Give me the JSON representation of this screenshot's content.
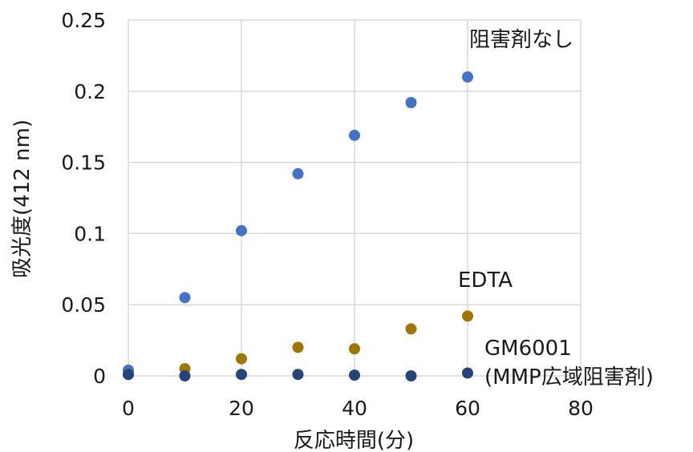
{
  "chart_data": {
    "type": "scatter",
    "title": "",
    "xlabel": "反応時間(分)",
    "ylabel": "吸光度(412 nm)",
    "xlim": [
      0,
      80
    ],
    "ylim": [
      0,
      0.25
    ],
    "xticks": [
      "0",
      "20",
      "40",
      "60",
      "80"
    ],
    "yticks": [
      "0",
      "0.05",
      "0.1",
      "0.15",
      "0.2",
      "0.25"
    ],
    "grid": true,
    "legend": "none",
    "series": [
      {
        "name": "阻害剤なし",
        "color": "#4472c4",
        "x": [
          0,
          10,
          20,
          30,
          40,
          50,
          60
        ],
        "y": [
          0.004,
          0.055,
          0.102,
          0.142,
          0.169,
          0.192,
          0.21
        ]
      },
      {
        "name": "EDTA",
        "color": "#9e7600",
        "x": [
          0,
          10,
          20,
          30,
          40,
          50,
          60
        ],
        "y": [
          0.001,
          0.005,
          0.012,
          0.02,
          0.019,
          0.033,
          0.042
        ]
      },
      {
        "name_lines": [
          "GM6001",
          "(MMP広域阻害剤)"
        ],
        "color": "#264478",
        "x": [
          0,
          10,
          20,
          30,
          40,
          50,
          60
        ],
        "y": [
          0.001,
          0.0,
          0.001,
          0.001,
          0.0005,
          0.0,
          0.002
        ]
      }
    ]
  }
}
